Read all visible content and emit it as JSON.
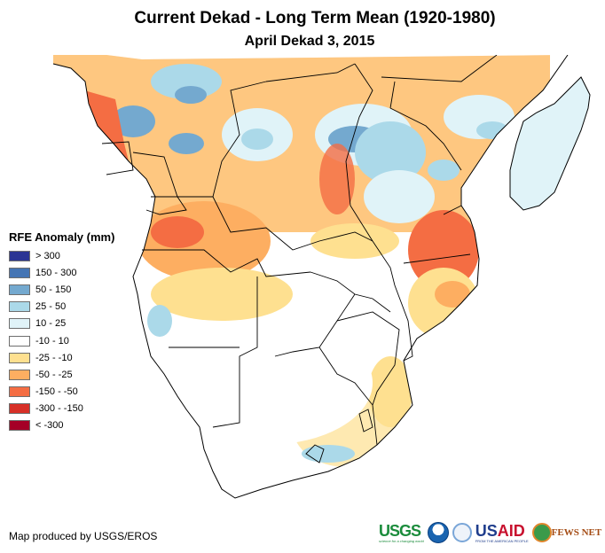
{
  "title": "Current Dekad - Long Term Mean (1920-1980)",
  "subtitle": "April Dekad 3, 2015",
  "legend": {
    "title": "RFE Anomaly (mm)",
    "items": [
      {
        "label": "> 300",
        "color": "#2b3594"
      },
      {
        "label": "150 - 300",
        "color": "#4575b4"
      },
      {
        "label": "50 - 150",
        "color": "#74a9cf"
      },
      {
        "label": "25 - 50",
        "color": "#abd9e9"
      },
      {
        "label": "10 - 25",
        "color": "#e0f3f8"
      },
      {
        "label": "-10 - 10",
        "color": "#ffffff"
      },
      {
        "label": "-25 - -10",
        "color": "#fee090"
      },
      {
        "label": "-50 - -25",
        "color": "#fdae61"
      },
      {
        "label": "-150 - -50",
        "color": "#f46d43"
      },
      {
        "label": "-300 - -150",
        "color": "#d73027"
      },
      {
        "label": "< -300",
        "color": "#a50026"
      }
    ]
  },
  "credit": "Map produced by USGS/EROS",
  "logos": {
    "usgs": "USGS",
    "usgs_tagline": "science for a changing world",
    "noaa": "NOAA",
    "usaid_us": "US",
    "usaid_aid": "AID",
    "usaid_tagline": "FROM THE AMERICAN PEOPLE",
    "fews": "FEWS NET"
  }
}
